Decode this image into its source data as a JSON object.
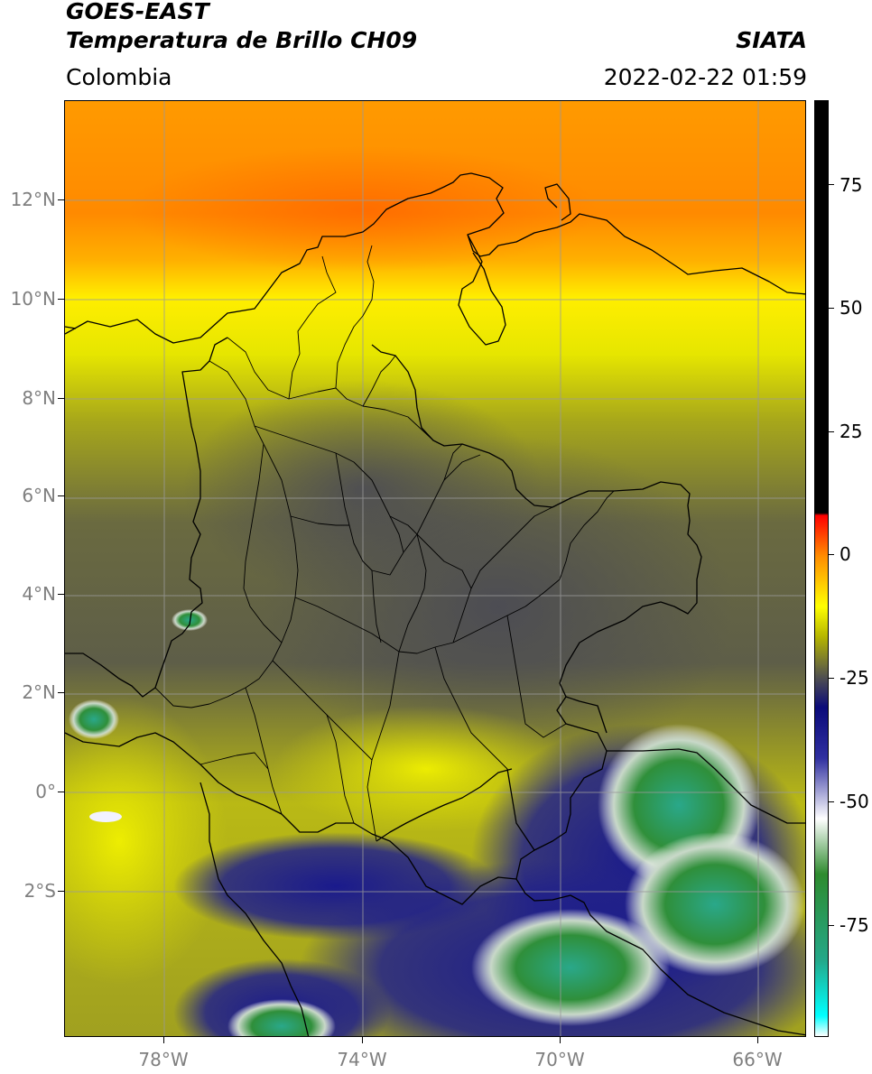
{
  "header": {
    "title_line1": "GOES-EAST",
    "title_line2": "Temperatura de Brillo CH09",
    "source": "SIATA",
    "region": "Colombia",
    "timestamp": "2022-02-22 01:59"
  },
  "map": {
    "projection": "PlateCarree",
    "lon_range": [
      -80.0,
      -65.0
    ],
    "lat_range": [
      -4.75,
      14.0
    ],
    "grid": true,
    "lat_ticks": [
      "12°N",
      "10°N",
      "8°N",
      "6°N",
      "4°N",
      "2°N",
      "0°",
      "2°S"
    ],
    "lon_ticks": [
      "78°W",
      "74°W",
      "70°W",
      "66°W"
    ],
    "field": "brightness temperature",
    "features": [
      "coastlines",
      "country borders",
      "Colombian department boundaries"
    ]
  },
  "colorbar": {
    "range": [
      -95,
      90
    ],
    "ticks": [
      "75",
      "50",
      "25",
      "0",
      "-25",
      "-50",
      "-75"
    ],
    "stops": [
      {
        "value": -95,
        "color": "#ffffff"
      },
      {
        "value": -91,
        "color": "#00ffff"
      },
      {
        "value": -80,
        "color": "#24a889"
      },
      {
        "value": -63,
        "color": "#2e8b2e"
      },
      {
        "value": -52,
        "color": "#ffffff"
      },
      {
        "value": -40,
        "color": "#3030a0"
      },
      {
        "value": -30,
        "color": "#0a0a7a"
      },
      {
        "value": -24,
        "color": "#505050"
      },
      {
        "value": -16,
        "color": "#b5b500"
      },
      {
        "value": -10,
        "color": "#ffff00"
      },
      {
        "value": 0,
        "color": "#ff8c00"
      },
      {
        "value": 8,
        "color": "#ff0000"
      },
      {
        "value": 8.5,
        "color": "#000000"
      },
      {
        "value": 90,
        "color": "#000000"
      }
    ]
  }
}
